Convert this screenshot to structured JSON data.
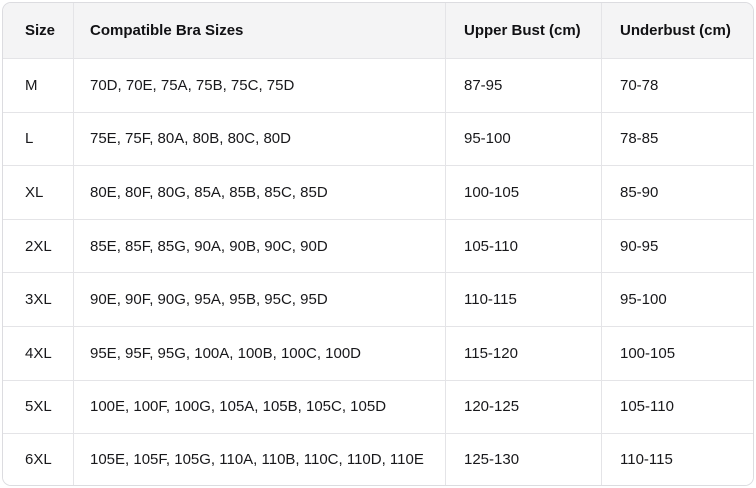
{
  "chart_data": {
    "type": "table",
    "columns": [
      "Size",
      "Compatible Bra Sizes",
      "Upper Bust (cm)",
      "Underbust (cm)"
    ],
    "column_keys": [
      "size",
      "compatible-bra-sizes",
      "upper-bust",
      "underbust"
    ],
    "rows": [
      [
        "M",
        "70D, 70E, 75A, 75B, 75C, 75D",
        "87-95",
        "70-78"
      ],
      [
        "L",
        "75E, 75F, 80A, 80B, 80C, 80D",
        "95-100",
        "78-85"
      ],
      [
        "XL",
        "80E, 80F, 80G, 85A, 85B, 85C, 85D",
        "100-105",
        "85-90"
      ],
      [
        "2XL",
        "85E, 85F, 85G, 90A, 90B, 90C, 90D",
        "105-110",
        "90-95"
      ],
      [
        "3XL",
        "90E, 90F, 90G, 95A, 95B, 95C, 95D",
        "110-115",
        "95-100"
      ],
      [
        "4XL",
        "95E, 95F, 95G, 100A, 100B, 100C, 100D",
        "115-120",
        "100-105"
      ],
      [
        "5XL",
        "100E, 100F, 100G, 105A, 105B, 105C, 105D",
        "120-125",
        "105-110"
      ],
      [
        "6XL",
        "105E, 105F, 105G, 110A, 110B, 110C, 110D, 110E",
        "125-130",
        "110-115"
      ]
    ],
    "legend": null,
    "grid": true
  },
  "colors": {
    "header_bg": "#f4f4f5",
    "border": "#e4e4e7",
    "outer_border": "#dcdce0",
    "text": "#18181b",
    "background": "#ffffff"
  }
}
